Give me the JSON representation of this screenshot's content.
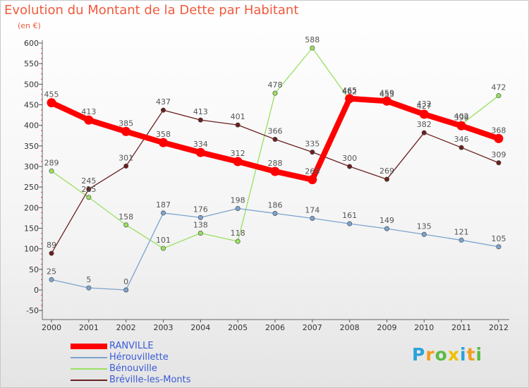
{
  "chart_data": {
    "type": "line",
    "title": "Evolution du Montant de la Dette par Habitant",
    "subtitle": "(en €)",
    "x": [
      "2000",
      "2001",
      "2002",
      "2003",
      "2004",
      "2005",
      "2006",
      "2007",
      "2008",
      "2009",
      "2010",
      "2011",
      "2012"
    ],
    "ylim": [
      -50,
      600
    ],
    "yticks": [
      -50,
      0,
      50,
      100,
      150,
      200,
      250,
      300,
      350,
      400,
      450,
      500,
      550,
      600
    ],
    "grid": false,
    "legend": "bottom-left",
    "series": [
      {
        "name": "RANVILLE",
        "color": "#ff0000",
        "values": [
          455,
          413,
          385,
          358,
          334,
          312,
          288,
          268,
          465,
          459,
          427,
          399,
          368
        ]
      },
      {
        "name": "Hérouvillette",
        "color": "#7ca3cf",
        "values": [
          25,
          5,
          0,
          187,
          176,
          198,
          186,
          174,
          161,
          149,
          135,
          121,
          105
        ]
      },
      {
        "name": "Bénouville",
        "color": "#99e060",
        "values": [
          289,
          225,
          158,
          101,
          138,
          118,
          478,
          588,
          462,
          455,
          432,
          402,
          472
        ]
      },
      {
        "name": "Bréville-les-Monts",
        "color": "#6b2020",
        "values": [
          89,
          245,
          301,
          437,
          413,
          401,
          366,
          335,
          300,
          269,
          382,
          346,
          309
        ]
      }
    ]
  },
  "logo": {
    "letters": [
      "P",
      "r",
      "o",
      "x",
      "i",
      "t",
      "i"
    ],
    "colors": [
      "#2aa3da",
      "#f39c1f",
      "#5cbb46",
      "#f0c000",
      "#2aa3da",
      "#f39c1f",
      "#5cbb46"
    ]
  }
}
